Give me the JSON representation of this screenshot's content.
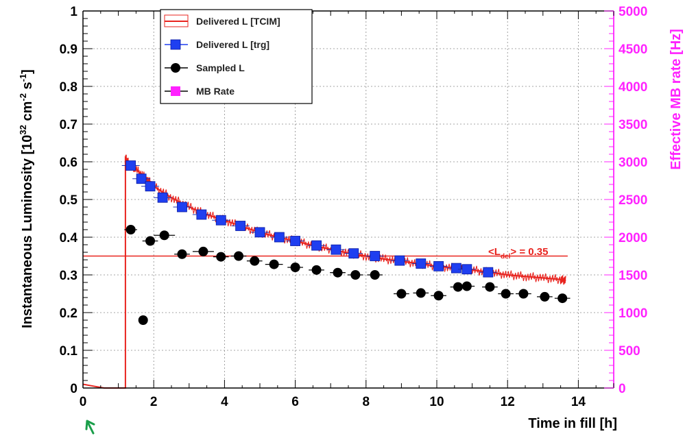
{
  "colors": {
    "tcim": "#e8231e",
    "trg_fill": "#1f3ff0",
    "sampled": "#000000",
    "mb": "#ff22ff",
    "axis": "#000000",
    "grid": "#888888",
    "pointer_arrow": "#1a9e4a"
  },
  "chart_data": {
    "type": "scatter",
    "xlabel": "Time in fill [h]",
    "ylabel": "Instantaneous Luminosity [10^32 cm^-2 s^-1]",
    "ylabel_parts": {
      "pre": "Instantaneous Luminosity [10",
      "exp1": "32",
      "mid": " cm",
      "exp2": "-2",
      "mid2": " s",
      "exp3": "-1",
      "post": "]"
    },
    "y2label": "Effective MB rate [Hz]",
    "xlim": [
      0,
      15
    ],
    "ylim": [
      0,
      1
    ],
    "y2lim": [
      0,
      5000
    ],
    "xticks": [
      0,
      2,
      4,
      6,
      8,
      10,
      12,
      14
    ],
    "xtick_labels": [
      "0",
      "2",
      "4",
      "6",
      "8",
      "10",
      "12",
      "14"
    ],
    "yticks": [
      0,
      0.1,
      0.2,
      0.3,
      0.4,
      0.5,
      0.6,
      0.7,
      0.8,
      0.9,
      1
    ],
    "ytick_labels": [
      "0",
      "0.1",
      "0.2",
      "0.3",
      "0.4",
      "0.5",
      "0.6",
      "0.7",
      "0.8",
      "0.9",
      "1"
    ],
    "y2ticks": [
      0,
      500,
      1000,
      1500,
      2000,
      2500,
      3000,
      3500,
      4000,
      4500,
      5000
    ],
    "y2tick_labels": [
      "0",
      "500",
      "1000",
      "1500",
      "2000",
      "2500",
      "3000",
      "3500",
      "4000",
      "4500",
      "5000"
    ],
    "grid": true,
    "legend_position": "top-left",
    "legend": [
      {
        "label": "Delivered L [TCIM]",
        "marker": "line"
      },
      {
        "label": "Delivered L [trg]",
        "marker": "square"
      },
      {
        "label": "Sampled L",
        "marker": "circle"
      },
      {
        "label": "MB Rate",
        "marker": "square"
      }
    ],
    "annotation": {
      "pre": "<L",
      "sub": "del",
      "post": "> =  0.35",
      "value": 0.35
    },
    "series": [
      {
        "name": "Delivered L [TCIM]",
        "style": "line",
        "x": [
          0.0,
          0.3,
          0.6,
          1.0,
          1.18,
          1.2,
          1.2,
          1.3,
          1.5,
          1.8,
          2.0,
          2.5,
          3.0,
          3.5,
          4.0,
          4.5,
          5.0,
          5.5,
          6.0,
          6.5,
          7.0,
          7.5,
          8.0,
          8.5,
          9.0,
          9.5,
          10.0,
          10.5,
          11.0,
          11.5,
          12.0,
          12.5,
          13.0,
          13.5,
          13.65
        ],
        "y": [
          0.01,
          0.005,
          0.0,
          0.0,
          0.0,
          0.0,
          0.61,
          0.595,
          0.58,
          0.555,
          0.535,
          0.505,
          0.48,
          0.46,
          0.445,
          0.428,
          0.413,
          0.4,
          0.39,
          0.378,
          0.368,
          0.358,
          0.35,
          0.342,
          0.336,
          0.33,
          0.323,
          0.318,
          0.313,
          0.307,
          0.3,
          0.296,
          0.292,
          0.288,
          0.285
        ]
      },
      {
        "name": "Delivered L [trg]",
        "style": "square",
        "x": [
          1.35,
          1.65,
          1.9,
          2.25,
          2.8,
          3.35,
          3.9,
          4.45,
          5.0,
          5.55,
          6.0,
          6.6,
          7.15,
          7.65,
          8.25,
          8.95,
          9.55,
          10.05,
          10.55,
          10.85,
          11.45
        ],
        "y": [
          0.59,
          0.555,
          0.535,
          0.505,
          0.48,
          0.46,
          0.445,
          0.43,
          0.413,
          0.4,
          0.39,
          0.378,
          0.367,
          0.357,
          0.35,
          0.338,
          0.33,
          0.323,
          0.318,
          0.315,
          0.307
        ]
      },
      {
        "name": "Sampled L",
        "style": "circle",
        "x": [
          1.35,
          1.7,
          1.9,
          2.3,
          2.8,
          3.4,
          3.9,
          4.4,
          4.85,
          5.4,
          6.0,
          6.6,
          7.2,
          7.7,
          8.25,
          9.0,
          9.55,
          10.05,
          10.6,
          10.85,
          11.5,
          11.95,
          12.45,
          13.05,
          13.55
        ],
        "y": [
          0.42,
          0.18,
          0.39,
          0.405,
          0.355,
          0.362,
          0.348,
          0.35,
          0.337,
          0.328,
          0.32,
          0.313,
          0.306,
          0.3,
          0.3,
          0.25,
          0.252,
          0.245,
          0.268,
          0.27,
          0.268,
          0.25,
          0.25,
          0.242,
          0.238
        ],
        "xerr": [
          0.18,
          0,
          0.22,
          0.3,
          0.22,
          0.3,
          0.22,
          0.22,
          0.22,
          0.25,
          0.22,
          0.22,
          0.22,
          0.22,
          0.22,
          0.22,
          0.22,
          0.22,
          0.22,
          0.22,
          0.22,
          0.22,
          0.22,
          0.22,
          0.22
        ]
      }
    ]
  }
}
